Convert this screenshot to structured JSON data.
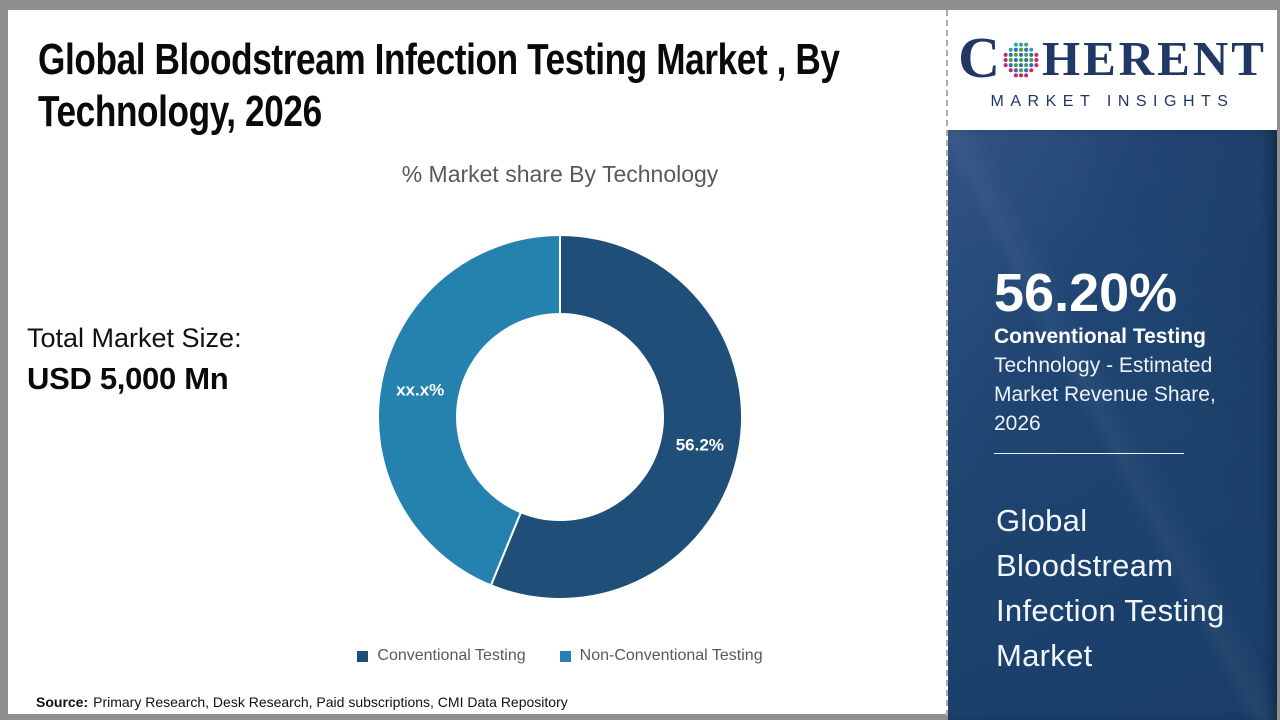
{
  "header": {
    "title_line1": "Global Bloodstream Infection Testing Market , By",
    "title_line2": "Technology, 2026"
  },
  "total_market": {
    "label": "Total Market Size:",
    "value": "USD 5,000 Mn"
  },
  "chart_data": {
    "type": "pie",
    "donut": true,
    "title": "% Market share By Technology",
    "categories": [
      "Conventional Testing",
      "Non-Conventional Testing"
    ],
    "values": [
      56.2,
      43.8
    ],
    "display_labels": [
      "56.2%",
      "xx.x%"
    ],
    "colors": [
      "#1f4e79",
      "#2581ad"
    ],
    "start_angle_deg": 0,
    "legend_position": "bottom"
  },
  "sidebar": {
    "logo": {
      "brand_c": "C",
      "brand_rest": "HERENT",
      "tagline": "MARKET INSIGHTS",
      "navy": "#1f3864"
    },
    "stat": {
      "value": "56.20%",
      "label_bold": "Conventional Testing",
      "label_rest": "Technology - Estimated Market Revenue Share, 2026"
    },
    "market_name": "Global Bloodstream Infection Testing Market",
    "background": "#1e4470"
  },
  "footer": {
    "source_label": "Source:",
    "source_text": "Primary Research, Desk Research, Paid subscriptions, CMI Data Repository"
  }
}
